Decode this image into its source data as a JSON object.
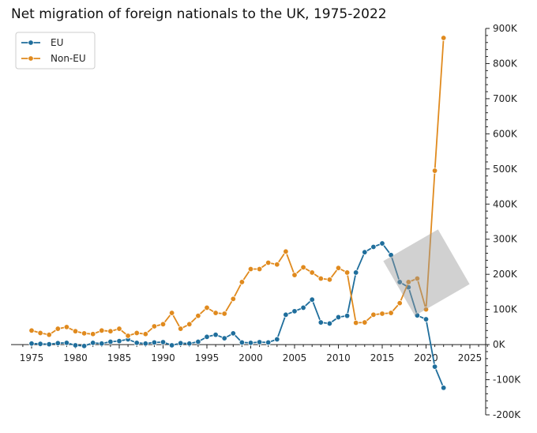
{
  "chart_data": {
    "type": "line",
    "title": "Net migration of foreign nationals to the UK, 1975-2022",
    "xlabel": "",
    "ylabel": "",
    "xlim": [
      1973.5,
      2027
    ],
    "ylim": [
      -200000,
      900000
    ],
    "x_ticks": [
      1975,
      1980,
      1985,
      1990,
      1995,
      2000,
      2005,
      2010,
      2015,
      2020,
      2025
    ],
    "y_ticks": [
      {
        "value": -200000,
        "label": "-200K"
      },
      {
        "value": -100000,
        "label": "-100K"
      },
      {
        "value": 0,
        "label": "0K"
      },
      {
        "value": 100000,
        "label": "100K"
      },
      {
        "value": 200000,
        "label": "200K"
      },
      {
        "value": 300000,
        "label": "300K"
      },
      {
        "value": 400000,
        "label": "400K"
      },
      {
        "value": 500000,
        "label": "500K"
      },
      {
        "value": 600000,
        "label": "600K"
      },
      {
        "value": 700000,
        "label": "700K"
      },
      {
        "value": 800000,
        "label": "800K"
      },
      {
        "value": 900000,
        "label": "900K"
      }
    ],
    "y_axis_position": "right",
    "grid": false,
    "legend_position": "top-left",
    "x": [
      1975,
      1976,
      1977,
      1978,
      1979,
      1980,
      1981,
      1982,
      1983,
      1984,
      1985,
      1986,
      1987,
      1988,
      1989,
      1990,
      1991,
      1992,
      1993,
      1994,
      1995,
      1996,
      1997,
      1998,
      1999,
      2000,
      2001,
      2002,
      2003,
      2004,
      2005,
      2006,
      2007,
      2008,
      2009,
      2010,
      2011,
      2012,
      2013,
      2014,
      2015,
      2016,
      2017,
      2018,
      2019,
      2020,
      2021,
      2022
    ],
    "series": [
      {
        "name": "EU",
        "color": "#1f6e9c",
        "values": [
          3000,
          2000,
          1000,
          4000,
          5000,
          -2000,
          -4000,
          5000,
          3000,
          8000,
          10000,
          15000,
          5000,
          3000,
          6000,
          7000,
          -2000,
          4000,
          3000,
          8000,
          22000,
          28000,
          18000,
          32000,
          6000,
          5000,
          7000,
          6000,
          15000,
          85000,
          95000,
          105000,
          128000,
          63000,
          60000,
          78000,
          82000,
          205000,
          263000,
          278000,
          288000,
          255000,
          178000,
          163000,
          83000,
          72000,
          -63000,
          -123000
        ]
      },
      {
        "name": "Non-EU",
        "color": "#e08a1e",
        "values": [
          40000,
          33000,
          28000,
          45000,
          50000,
          38000,
          32000,
          30000,
          40000,
          38000,
          45000,
          25000,
          33000,
          30000,
          52000,
          58000,
          90000,
          45000,
          58000,
          82000,
          105000,
          90000,
          88000,
          130000,
          178000,
          215000,
          215000,
          233000,
          228000,
          265000,
          198000,
          220000,
          205000,
          188000,
          185000,
          218000,
          205000,
          62000,
          63000,
          85000,
          88000,
          90000,
          118000,
          178000,
          188000,
          100000,
          495000,
          873000
        ]
      }
    ]
  }
}
